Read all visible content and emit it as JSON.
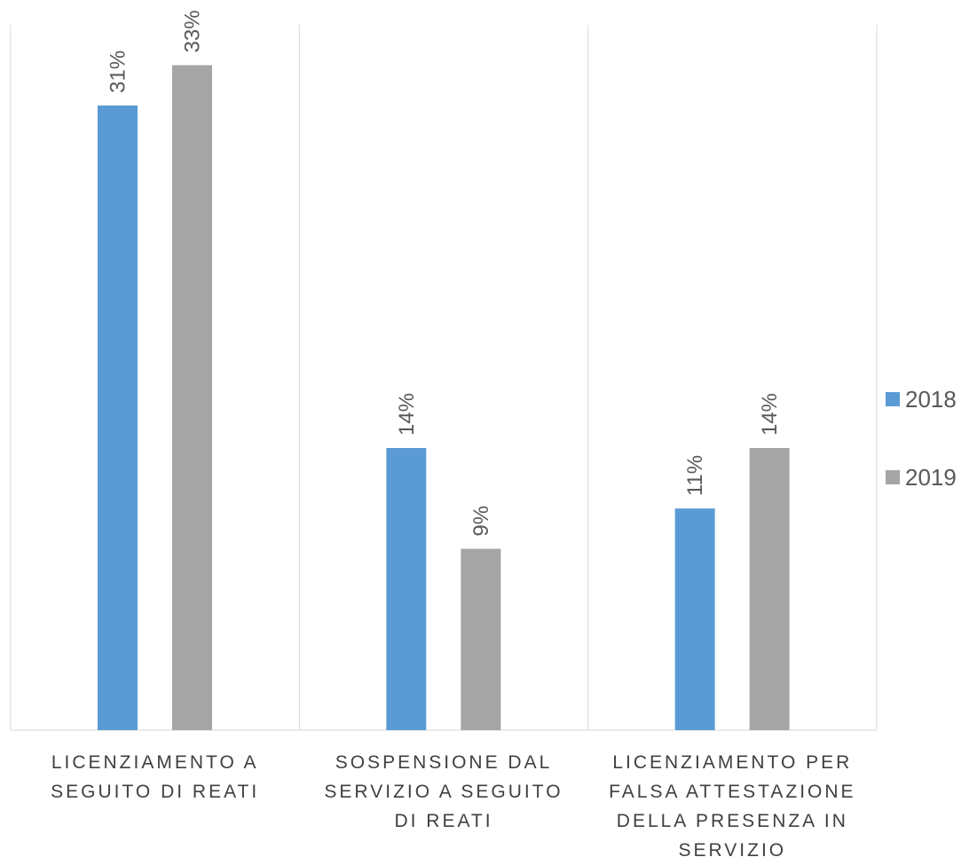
{
  "chart_data": {
    "type": "bar",
    "categories": [
      [
        "LICENZIAMENTO A",
        "SEGUITO DI REATI"
      ],
      [
        "SOSPENSIONE DAL",
        "SERVIZIO A SEGUITO",
        "DI REATI"
      ],
      [
        "LICENZIAMENTO PER",
        "FALSA ATTESTAZIONE",
        "DELLA PRESENZA IN",
        "SERVIZIO"
      ]
    ],
    "series": [
      {
        "name": "2018",
        "color": "#5b9bd5",
        "values": [
          31,
          14,
          11
        ],
        "labels": [
          "31%",
          "14%",
          "11%"
        ]
      },
      {
        "name": "2019",
        "color": "#a5a5a5",
        "values": [
          33,
          9,
          14
        ],
        "labels": [
          "33%",
          "9%",
          "14%"
        ]
      }
    ],
    "ylim": [
      0,
      35
    ],
    "grid": "vertical category separators",
    "legend": "right"
  }
}
